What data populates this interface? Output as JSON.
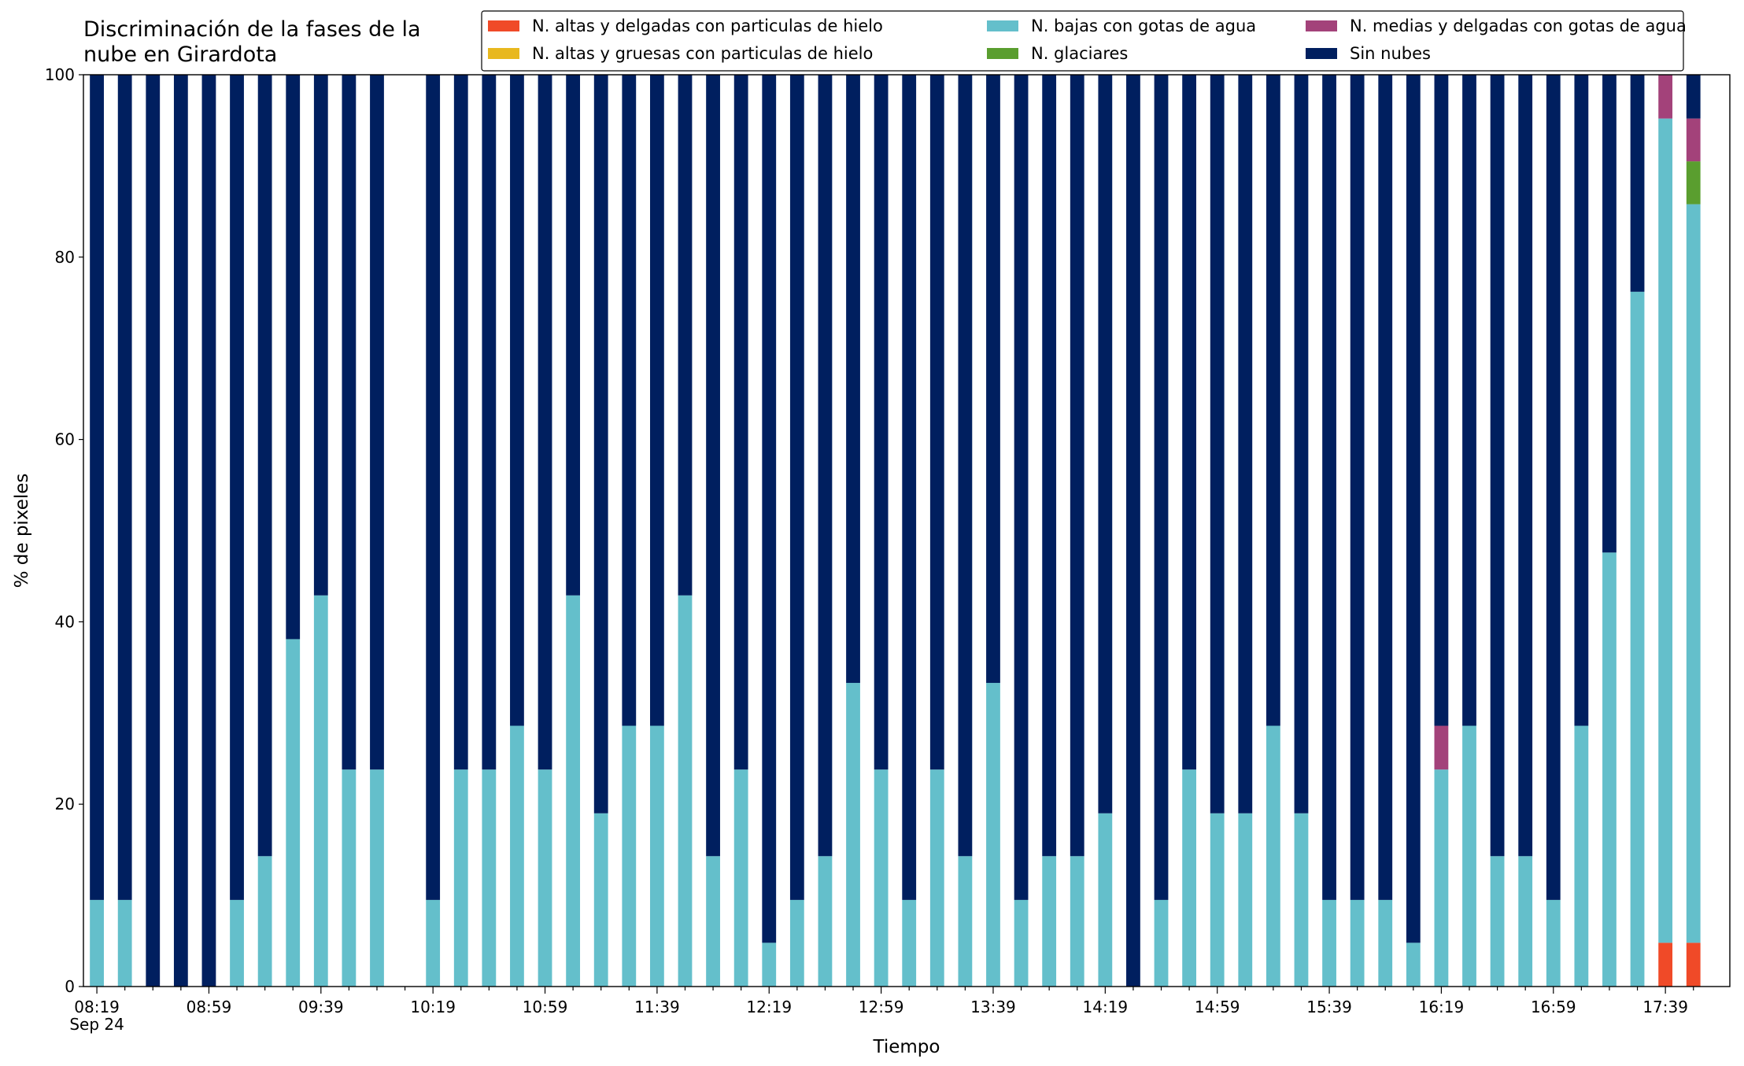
{
  "chart_data": {
    "type": "stacked_bar",
    "title": "Discriminación de la fases de la nube en Girardota",
    "x_label": "Tiempo",
    "y_label": "% de pixeles",
    "x_date_label": "Sep 24",
    "categories": [
      "08:19",
      null,
      null,
      null,
      "08:59",
      null,
      null,
      null,
      "09:39",
      null,
      null,
      null,
      "10:19",
      null,
      null,
      null,
      "10:59",
      null,
      null,
      null,
      "11:39",
      null,
      null,
      null,
      "12:19",
      null,
      null,
      null,
      "12:59",
      null,
      null,
      null,
      "13:39",
      null,
      null,
      null,
      "14:19",
      null,
      null,
      null,
      "14:59",
      null,
      null,
      null,
      "15:39",
      null,
      null,
      null,
      "16:19",
      null,
      null,
      null,
      "16:59",
      null,
      null,
      null,
      "17:39",
      null
    ],
    "xlim": [
      -0.48,
      58.3
    ],
    "ylim": [
      0,
      100
    ],
    "yticks": [
      0,
      20,
      40,
      60,
      80,
      100
    ],
    "legend": "top-right",
    "series": [
      {
        "name": "N. altas y delgadas con particulas de hielo",
        "color": "#f04a28",
        "values": [
          0,
          0,
          0,
          0,
          0,
          0,
          0,
          0,
          0,
          0,
          0,
          null,
          0,
          0,
          0,
          0,
          0,
          0,
          0,
          0,
          0,
          0,
          0,
          0,
          0,
          0,
          0,
          0,
          0,
          0,
          0,
          0,
          0,
          0,
          0,
          0,
          0,
          0,
          0,
          0,
          0,
          0,
          0,
          0,
          0,
          0,
          0,
          0,
          0,
          0,
          0,
          0,
          0,
          0,
          0,
          0,
          4.8,
          4.8
        ]
      },
      {
        "name": "N. altas y gruesas con particulas de hielo",
        "color": "#e8b81e",
        "values": [
          0,
          0,
          0,
          0,
          0,
          0,
          0,
          0,
          0,
          0,
          0,
          null,
          0,
          0,
          0,
          0,
          0,
          0,
          0,
          0,
          0,
          0,
          0,
          0,
          0,
          0,
          0,
          0,
          0,
          0,
          0,
          0,
          0,
          0,
          0,
          0,
          0,
          0,
          0,
          0,
          0,
          0,
          0,
          0,
          0,
          0,
          0,
          0,
          0,
          0,
          0,
          0,
          0,
          0,
          0,
          0,
          0,
          0
        ]
      },
      {
        "name": "N. bajas con gotas de agua",
        "color": "#64bfcb",
        "values": [
          9.5,
          9.5,
          0,
          0,
          0,
          9.5,
          14.3,
          38.1,
          42.9,
          23.8,
          23.8,
          null,
          9.5,
          23.8,
          23.8,
          28.6,
          23.8,
          42.9,
          19,
          28.6,
          28.6,
          42.9,
          14.3,
          23.8,
          4.8,
          9.5,
          14.3,
          33.3,
          23.8,
          9.5,
          23.8,
          14.3,
          33.3,
          9.5,
          14.3,
          14.3,
          19,
          0,
          9.5,
          23.8,
          19,
          19,
          28.6,
          19,
          9.5,
          9.5,
          9.5,
          4.8,
          23.8,
          28.6,
          14.3,
          14.3,
          9.5,
          28.6,
          47.6,
          76.2,
          90.4,
          81
        ]
      },
      {
        "name": "N. glaciares",
        "color": "#5a9e2f",
        "values": [
          0,
          0,
          0,
          0,
          0,
          0,
          0,
          0,
          0,
          0,
          0,
          null,
          0,
          0,
          0,
          0,
          0,
          0,
          0,
          0,
          0,
          0,
          0,
          0,
          0,
          0,
          0,
          0,
          0,
          0,
          0,
          0,
          0,
          0,
          0,
          0,
          0,
          0,
          0,
          0,
          0,
          0,
          0,
          0,
          0,
          0,
          0,
          0,
          0,
          0,
          0,
          0,
          0,
          0,
          0,
          0,
          0,
          4.7
        ]
      },
      {
        "name": "N. medias y delgadas con gotas de agua",
        "color": "#a3427a",
        "values": [
          0,
          0,
          0,
          0,
          0,
          0,
          0,
          0,
          0,
          0,
          0,
          null,
          0,
          0,
          0,
          0,
          0,
          0,
          0,
          0,
          0,
          0,
          0,
          0,
          0,
          0,
          0,
          0,
          0,
          0,
          0,
          0,
          0,
          0,
          0,
          0,
          0,
          0,
          0,
          0,
          0,
          0,
          0,
          0,
          0,
          0,
          0,
          0,
          4.8,
          0,
          0,
          0,
          0,
          0,
          0,
          0,
          4.8,
          4.7
        ]
      },
      {
        "name": "Sin nubes",
        "color": "#001f5f",
        "values": [
          90.5,
          90.5,
          100,
          100,
          100,
          90.5,
          85.7,
          61.9,
          57.1,
          76.2,
          76.2,
          null,
          90.5,
          76.2,
          76.2,
          71.4,
          76.2,
          57.1,
          81,
          71.4,
          71.4,
          57.1,
          85.7,
          76.2,
          95.2,
          90.5,
          85.7,
          66.7,
          76.2,
          90.5,
          76.2,
          85.7,
          66.7,
          90.5,
          85.7,
          85.7,
          81,
          100,
          90.5,
          76.2,
          81,
          81,
          71.4,
          81,
          90.5,
          90.5,
          90.5,
          95.2,
          71.4,
          71.4,
          85.7,
          85.7,
          90.5,
          71.4,
          52.4,
          23.8,
          0,
          4.8
        ]
      }
    ]
  }
}
